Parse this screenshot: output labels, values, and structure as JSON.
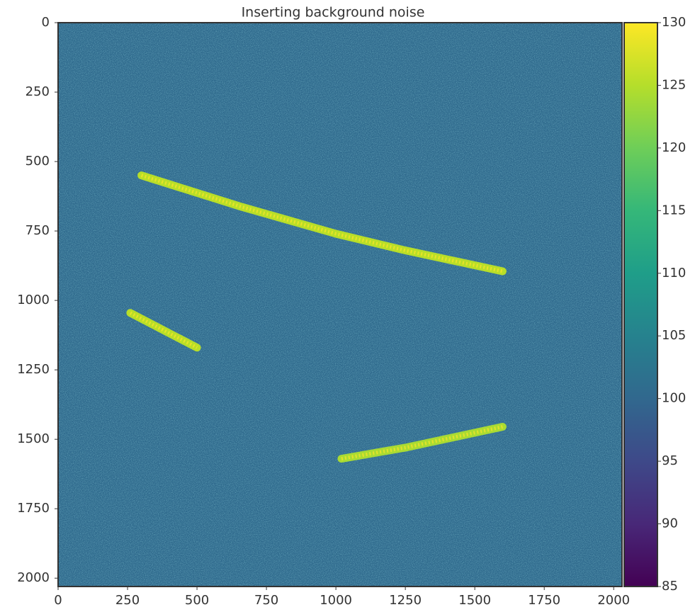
{
  "chart_data": {
    "type": "image",
    "title": "Inserting background noise",
    "xlim": [
      0,
      2030
    ],
    "ylim": [
      2030,
      0
    ],
    "xticks": [
      0,
      250,
      500,
      750,
      1000,
      1250,
      1500,
      1750,
      2000
    ],
    "yticks": [
      0,
      250,
      500,
      750,
      1000,
      1250,
      1500,
      1750,
      2000
    ],
    "background_color": "#2f6a8d",
    "series": [
      {
        "color": "#b8de29",
        "x": [
          300,
          650,
          1000,
          1250,
          1600
        ],
        "values": [
          550,
          660,
          760,
          820,
          895
        ]
      },
      {
        "color": "#b8de29",
        "x": [
          260,
          500
        ],
        "values": [
          1045,
          1170
        ]
      },
      {
        "color": "#a9db33",
        "x": [
          1020,
          1250,
          1600
        ],
        "values": [
          1570,
          1530,
          1455
        ]
      }
    ],
    "colorbar": {
      "colormap": [
        "#440154",
        "#482878",
        "#3e4989",
        "#31688e",
        "#26828e",
        "#1f9e89",
        "#35b779",
        "#6ece58",
        "#b5de2b",
        "#fde725"
      ],
      "lim": [
        85,
        130
      ],
      "ticks": [
        85,
        90,
        95,
        100,
        105,
        110,
        115,
        120,
        125,
        130
      ]
    }
  }
}
